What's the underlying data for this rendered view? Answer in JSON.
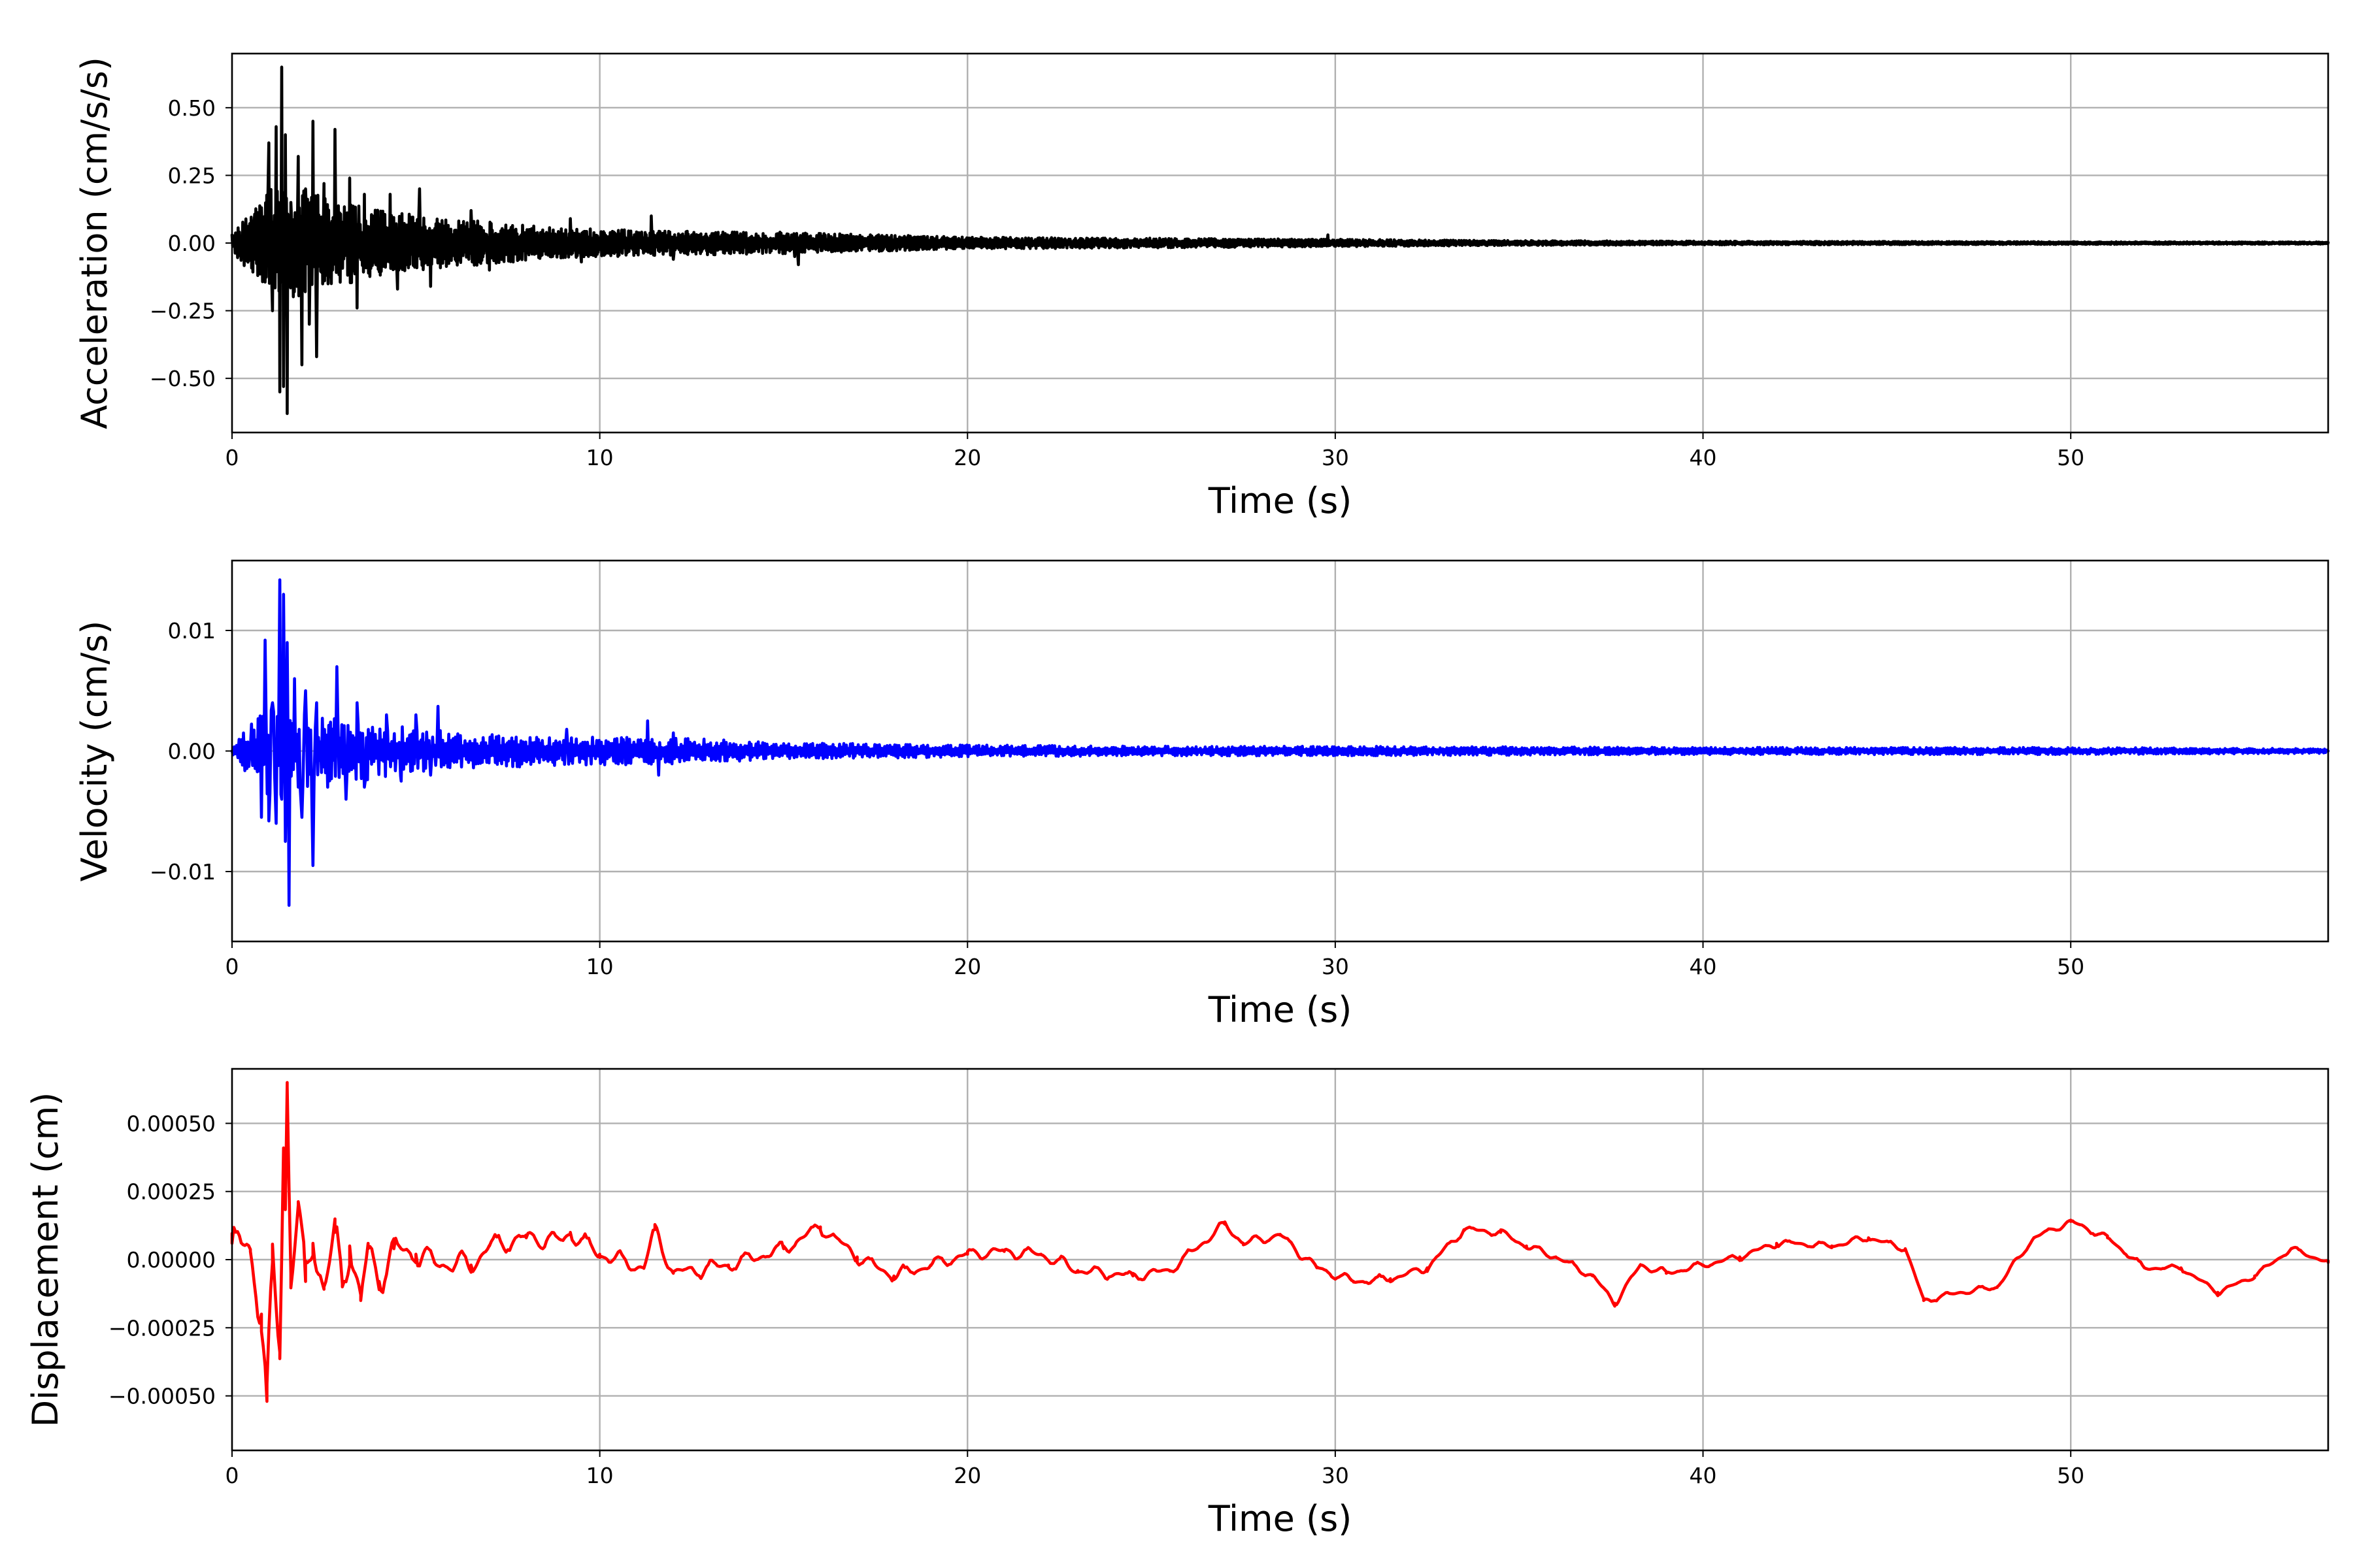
{
  "chart_data": [
    {
      "type": "line",
      "title": "",
      "xlabel": "Time (s)",
      "ylabel": "Acceleration (cm/s/s)",
      "xlim": [
        0,
        57
      ],
      "ylim": [
        -0.7,
        0.7
      ],
      "xticks": [
        0,
        10,
        20,
        30,
        40,
        50
      ],
      "yticks": [
        0.5,
        0.25,
        0.0,
        -0.25,
        -0.5
      ],
      "ytick_labels": [
        "0.50",
        "0.25",
        "0.00",
        "−0.25",
        "−0.50"
      ],
      "grid": true,
      "series": [
        {
          "color": "#000000",
          "peaks": {
            "t": [
              0.0,
              0.3,
              0.6,
              0.7,
              0.8,
              1.0,
              1.1,
              1.2,
              1.3,
              1.35,
              1.4,
              1.45,
              1.5,
              1.6,
              1.8,
              1.9,
              2.0,
              2.1,
              2.2,
              2.3,
              2.5,
              2.7,
              2.8,
              3.2,
              3.4,
              3.6,
              4.3,
              4.5,
              5.1,
              5.4,
              6.5,
              7.0,
              9.2,
              9.5,
              11.4,
              12.0,
              14.9,
              15.3,
              15.4,
              29.8,
              57.0
            ],
            "v": [
              0.03,
              -0.05,
              0.08,
              -0.12,
              0.13,
              0.37,
              -0.25,
              0.43,
              -0.55,
              0.65,
              -0.53,
              0.4,
              -0.63,
              0.15,
              0.32,
              -0.45,
              0.2,
              -0.3,
              0.45,
              -0.42,
              0.22,
              -0.15,
              0.42,
              0.24,
              -0.24,
              0.18,
              0.18,
              -0.17,
              0.2,
              -0.16,
              0.12,
              -0.1,
              0.09,
              -0.07,
              0.1,
              -0.06,
              0.04,
              -0.05,
              -0.08,
              0.03,
              0.002
            ]
          },
          "envelope": {
            "t": [
              0,
              1,
              2,
              4,
              6,
              9,
              12,
              15,
              20,
              25,
              30,
              35,
              40,
              50,
              57
            ],
            "v": [
              0.03,
              0.2,
              0.2,
              0.12,
              0.09,
              0.055,
              0.045,
              0.04,
              0.022,
              0.018,
              0.014,
              0.009,
              0.007,
              0.005,
              0.004
            ]
          }
        }
      ]
    },
    {
      "type": "line",
      "title": "",
      "xlabel": "Time (s)",
      "ylabel": "Velocity (cm/s)",
      "xlim": [
        0,
        57
      ],
      "ylim": [
        -0.0158,
        0.0158
      ],
      "xticks": [
        0,
        10,
        20,
        30,
        40,
        50
      ],
      "yticks": [
        0.01,
        0.0,
        -0.01
      ],
      "ytick_labels": [
        "0.01",
        "0.00",
        "−0.01"
      ],
      "grid": true,
      "series": [
        {
          "color": "#0000ff",
          "peaks": {
            "t": [
              0.0,
              0.5,
              0.8,
              0.9,
              1.0,
              1.1,
              1.2,
              1.3,
              1.35,
              1.4,
              1.45,
              1.5,
              1.55,
              1.7,
              1.9,
              2.0,
              2.2,
              2.3,
              2.6,
              2.85,
              3.1,
              3.4,
              3.6,
              4.2,
              4.6,
              5.0,
              5.4,
              5.6,
              9.1,
              11.3,
              11.6,
              12.0,
              57.0
            ],
            "v": [
              0.0,
              0.0002,
              -0.0055,
              0.0092,
              -0.0058,
              0.004,
              -0.006,
              0.0142,
              -0.004,
              0.013,
              -0.0075,
              0.009,
              -0.0128,
              0.006,
              -0.0055,
              0.005,
              -0.0095,
              0.004,
              -0.003,
              0.007,
              -0.004,
              0.004,
              -0.003,
              0.003,
              -0.0025,
              0.003,
              -0.002,
              0.0037,
              0.0018,
              0.0025,
              -0.002,
              0.0015,
              0.0
            ]
          },
          "envelope": {
            "t": [
              0,
              1,
              2,
              4,
              6,
              9,
              12,
              15,
              20,
              25,
              30,
              40,
              50,
              57
            ],
            "v": [
              0.0004,
              0.004,
              0.003,
              0.0023,
              0.0016,
              0.0012,
              0.0011,
              0.0007,
              0.0005,
              0.0004,
              0.0004,
              0.0003,
              0.0003,
              0.0002
            ]
          }
        }
      ]
    },
    {
      "type": "line",
      "title": "",
      "xlabel": "Time (s)",
      "ylabel": "Displacement (cm)",
      "xlim": [
        0,
        57
      ],
      "ylim": [
        -0.0007,
        0.0007
      ],
      "xticks": [
        0,
        10,
        20,
        30,
        40,
        50
      ],
      "yticks": [
        0.0005,
        0.00025,
        0.0,
        -0.00025,
        -0.0005
      ],
      "ytick_labels": [
        "0.00050",
        "0.00025",
        "0.00000",
        "−0.00025",
        "−0.00050"
      ],
      "grid": true,
      "series": [
        {
          "color": "#ff0000",
          "trend": {
            "t": [
              0.0,
              0.5,
              0.8,
              0.95,
              1.1,
              1.3,
              1.4,
              1.45,
              1.5,
              1.6,
              1.8,
              2.0,
              2.2,
              2.5,
              2.8,
              3.0,
              3.2,
              3.5,
              3.7,
              4.0,
              4.4,
              5.0,
              5.5,
              6.5,
              7.0,
              8.0,
              9.0,
              9.2,
              10.0,
              11.2,
              11.5,
              12.0,
              13.5,
              15.0,
              16.0,
              17.0,
              18.0,
              19.0,
              20.0,
              21.0,
              22.0,
              23.0,
              24.5,
              25.5,
              27.0,
              27.5,
              28.5,
              29.5,
              30.5,
              31.5,
              32.5,
              33.5,
              34.5,
              35.2,
              36.0,
              37.0,
              37.6,
              38.3,
              39.0,
              40.0,
              41.0,
              42.0,
              42.5,
              43.5,
              44.5,
              45.5,
              46.0,
              47.0,
              48.0,
              49.0,
              50.0,
              51.0,
              52.0,
              53.0,
              54.0,
              55.0,
              56.0,
              57.0
            ],
            "v": [
              6e-05,
              3e-05,
              -0.0002,
              -0.00052,
              -1e-05,
              -0.00034,
              0.00041,
              0.0002,
              0.00065,
              -5e-05,
              0.0002,
              -8e-05,
              6e-05,
              -0.0001,
              0.0001,
              -0.0001,
              5e-05,
              -0.00015,
              4e-05,
              -8e-05,
              4e-05,
              2e-05,
              -1e-05,
              -2e-05,
              5e-05,
              8e-05,
              7e-05,
              0.0001,
              2e-05,
              -3e-05,
              0.00011,
              -5e-05,
              -2e-05,
              4e-05,
              0.00012,
              1e-05,
              -6e-05,
              -2e-05,
              2e-05,
              3e-05,
              2e-05,
              -4e-05,
              -6e-05,
              -4e-05,
              0.00013,
              6e-05,
              9e-05,
              -3e-05,
              -8e-05,
              -7e-05,
              -3e-05,
              0.00011,
              0.0001,
              5e-05,
              1e-05,
              -6e-05,
              -0.00016,
              -2e-05,
              -5e-05,
              -2e-05,
              1e-05,
              6e-05,
              6e-05,
              5e-05,
              8e-05,
              4e-05,
              -0.00015,
              -0.00012,
              -0.0001,
              8e-05,
              0.00014,
              8e-05,
              -3e-05,
              -3e-05,
              -0.00012,
              -6e-05,
              4e-05,
              -1e-05
            ]
          },
          "ripple": {
            "t": [
              0,
              2,
              5,
              10,
              20,
              30,
              57
            ],
            "v": [
              0.00012,
              0.0001,
              6e-05,
              4e-05,
              3e-05,
              2e-05,
              1.2e-05
            ]
          }
        }
      ]
    }
  ]
}
